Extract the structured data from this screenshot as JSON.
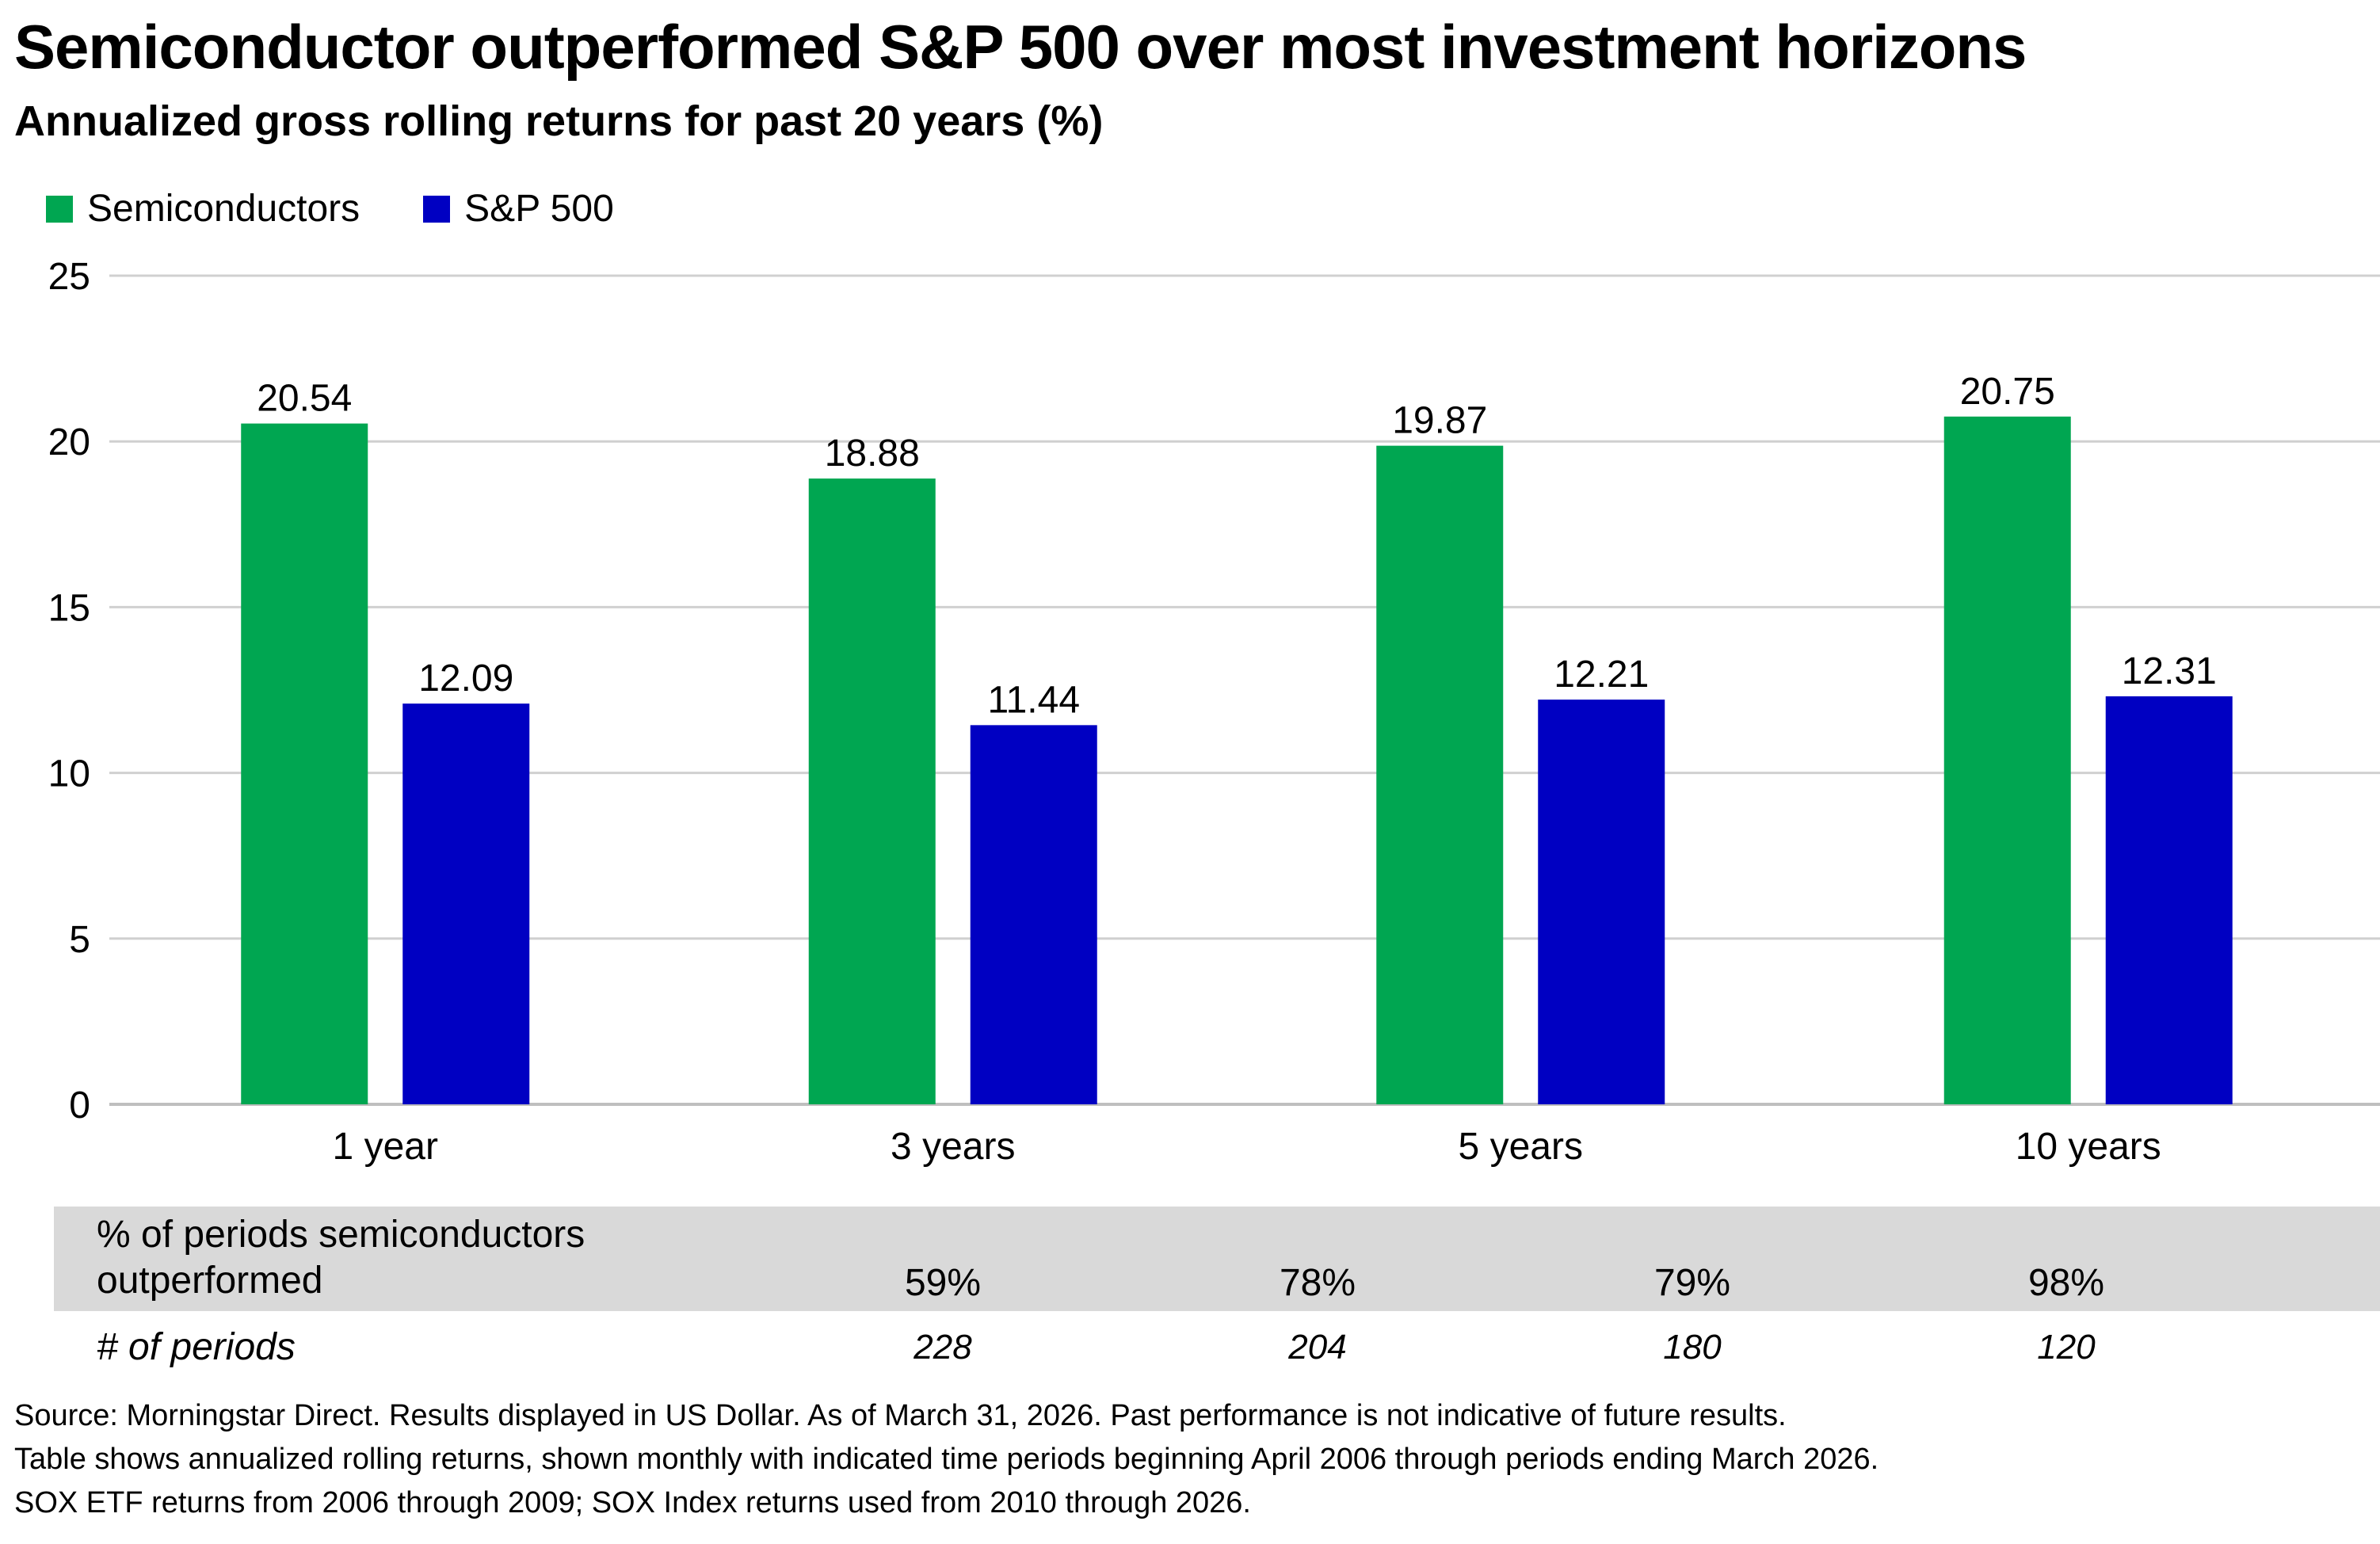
{
  "title": "Semiconductor outperformed S&P 500 over most investment horizons",
  "subtitle": "Annualized gross rolling returns for past 20 years (%)",
  "colors": {
    "semiconductors": "#00a651",
    "sp500": "#0000c2",
    "grid": "#d0d0d0",
    "band": "#d9d9d9"
  },
  "chart_data": {
    "type": "bar",
    "categories": [
      "1 year",
      "3 years",
      "5 years",
      "10 years"
    ],
    "series": [
      {
        "name": "Semiconductors",
        "values": [
          20.54,
          18.88,
          19.87,
          20.75
        ],
        "labels": [
          "20.54",
          "18.88",
          "19.87",
          "20.75"
        ]
      },
      {
        "name": "S&P 500",
        "values": [
          12.09,
          11.44,
          12.21,
          12.31
        ],
        "labels": [
          "12.09",
          "11.44",
          "12.21",
          "12.31"
        ]
      }
    ],
    "ylim": [
      0,
      25
    ],
    "yticks": [
      "0",
      "5",
      "10",
      "15",
      "20",
      "25"
    ],
    "grid": true,
    "legend": "top-left"
  },
  "table": {
    "row1_label_line1": "% of periods semiconductors",
    "row1_label_line2": "outperformed",
    "row1_values": [
      "59%",
      "78%",
      "79%",
      "98%"
    ],
    "row2_label": "# of periods",
    "row2_values": [
      "228",
      "204",
      "180",
      "120"
    ]
  },
  "footnotes": [
    "Source: Morningstar Direct. Results displayed in US Dollar. As of March 31, 2026. Past performance is not indicative of future results.",
    "Table shows annualized rolling returns, shown monthly with indicated time periods beginning April 2006 through periods ending March 2026.",
    "SOX ETF returns from 2006 through 2009; SOX Index returns used from 2010 through 2026."
  ]
}
